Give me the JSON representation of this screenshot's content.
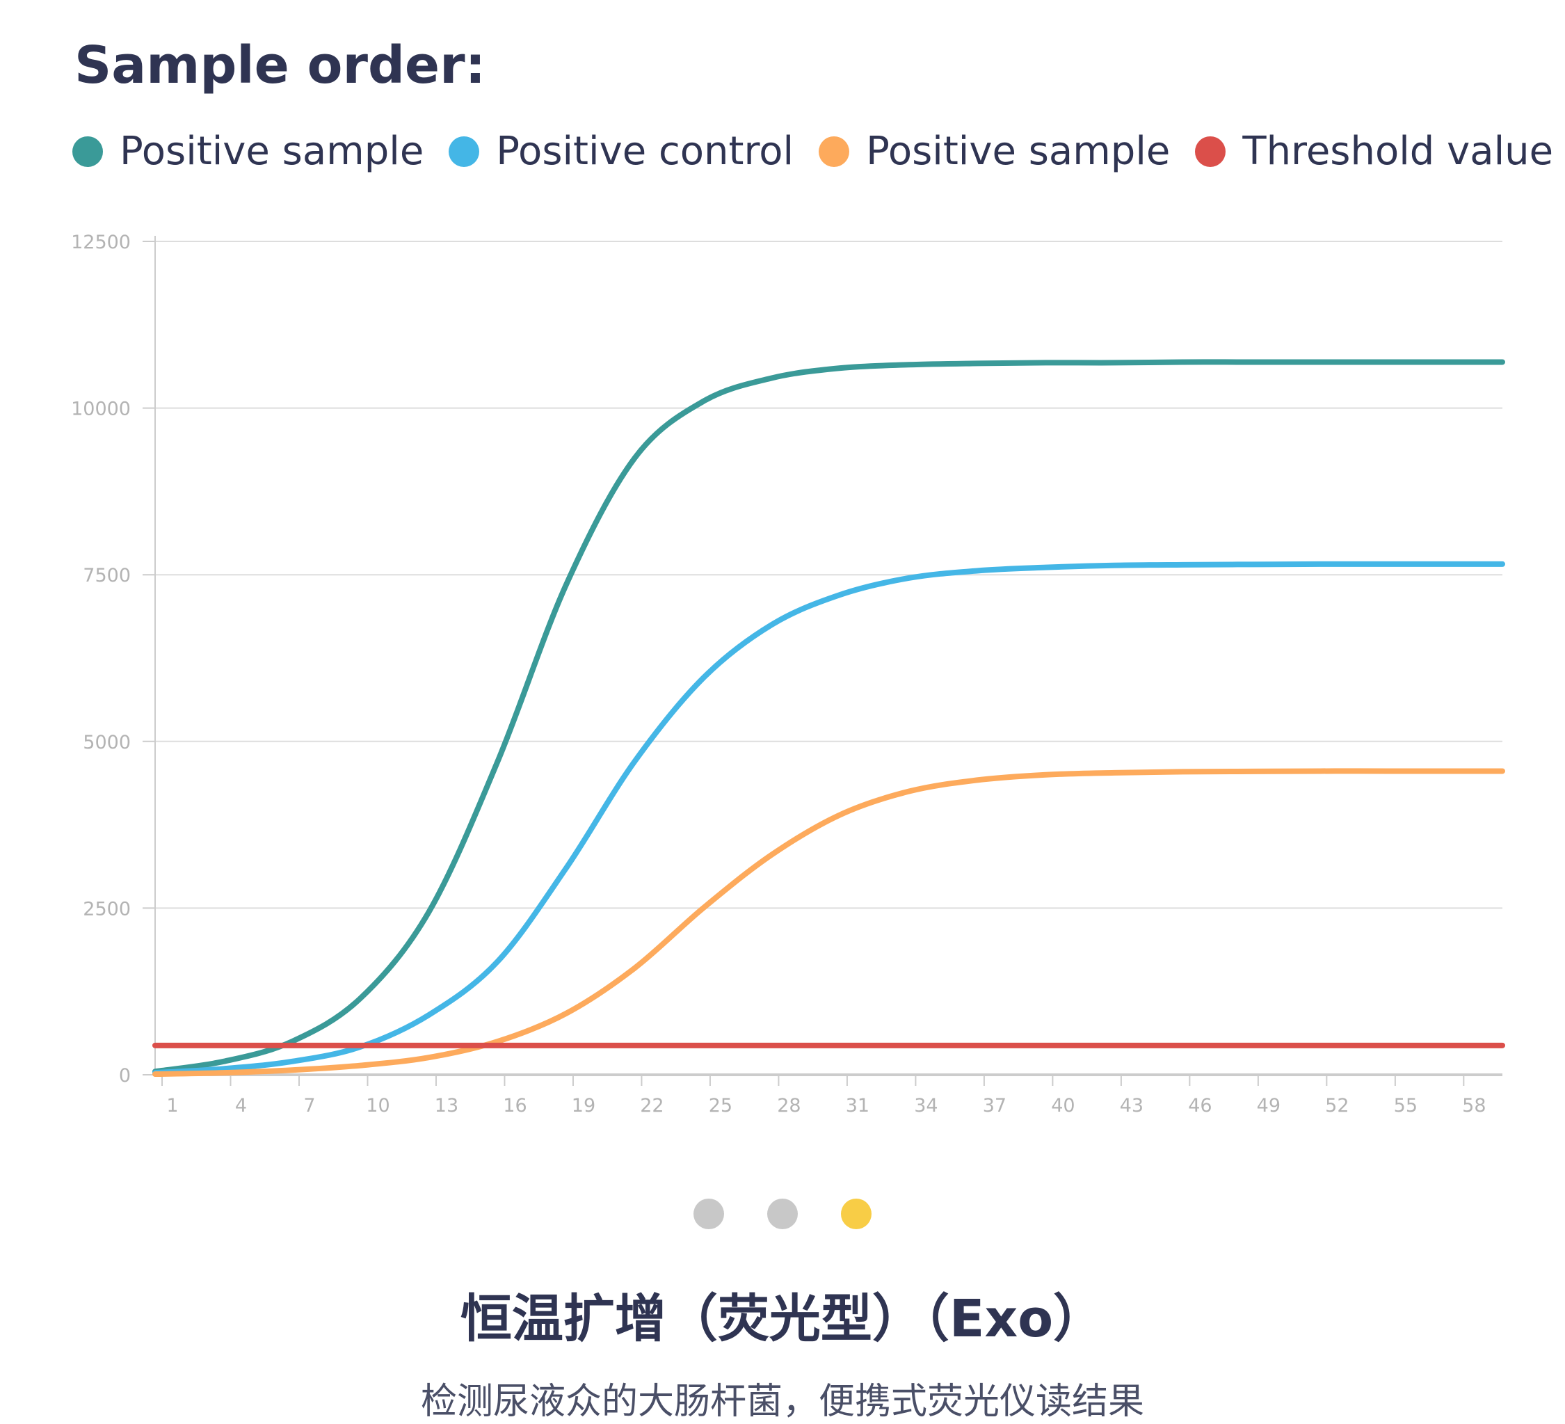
{
  "heading": "Sample order:",
  "legend": [
    {
      "label": "Positive sample",
      "color": "#3a9a98"
    },
    {
      "label": "Positive control",
      "color": "#44b6e6"
    },
    {
      "label": "Positive sample",
      "color": "#fdaa5c"
    },
    {
      "label": "Threshold value",
      "color": "#db4f4a"
    }
  ],
  "chart_data": {
    "type": "line",
    "title": "",
    "xlabel": "",
    "ylabel": "",
    "xlim": [
      1,
      60
    ],
    "ylim": [
      0,
      12500
    ],
    "x_ticks": [
      1,
      4,
      7,
      10,
      13,
      16,
      19,
      22,
      25,
      28,
      31,
      34,
      37,
      40,
      43,
      46,
      49,
      52,
      55,
      58
    ],
    "y_ticks": [
      0,
      2500,
      5000,
      7500,
      10000,
      12500
    ],
    "grid": true,
    "x": [
      1,
      4,
      7,
      10,
      13,
      16,
      19,
      22,
      25,
      28,
      31,
      34,
      37,
      40,
      43,
      46,
      49,
      52,
      55,
      58,
      60
    ],
    "series": [
      {
        "name": "Positive sample",
        "color": "#3a9a98",
        "values": [
          50,
          200,
          500,
          1150,
          2450,
          4700,
          7350,
          9250,
          10100,
          10450,
          10600,
          10650,
          10670,
          10680,
          10680,
          10690,
          10690,
          10690,
          10690,
          10690,
          10690
        ]
      },
      {
        "name": "Positive control",
        "color": "#44b6e6",
        "values": [
          30,
          90,
          200,
          420,
          900,
          1700,
          3100,
          4700,
          5950,
          6750,
          7200,
          7450,
          7560,
          7610,
          7640,
          7650,
          7655,
          7660,
          7660,
          7660,
          7660
        ]
      },
      {
        "name": "Positive sample",
        "color": "#fdaa5c",
        "values": [
          10,
          30,
          70,
          140,
          260,
          500,
          920,
          1600,
          2500,
          3300,
          3900,
          4250,
          4420,
          4500,
          4530,
          4545,
          4550,
          4555,
          4555,
          4555,
          4555
        ]
      },
      {
        "name": "Threshold value",
        "color": "#db4f4a",
        "values": [
          440,
          440,
          440,
          440,
          440,
          440,
          440,
          440,
          440,
          440,
          440,
          440,
          440,
          440,
          440,
          440,
          440,
          440,
          440,
          440,
          440
        ]
      }
    ],
    "legend_position": "top-left"
  },
  "pagination": {
    "dots": [
      {
        "state": "inactive",
        "color": "#c8c8c8"
      },
      {
        "state": "inactive",
        "color": "#c8c8c8"
      },
      {
        "state": "active",
        "color": "#f8cd46"
      }
    ]
  },
  "product": {
    "title": "恒温扩增（荧光型）（Exo）",
    "description": "检测尿液众的大肠杆菌，便携式荧光仪读结果"
  },
  "colors": {
    "text_dark": "#2f3452",
    "grid": "#dddddd",
    "axis": "#cccccc",
    "tick_label": "#b3b3b3"
  }
}
